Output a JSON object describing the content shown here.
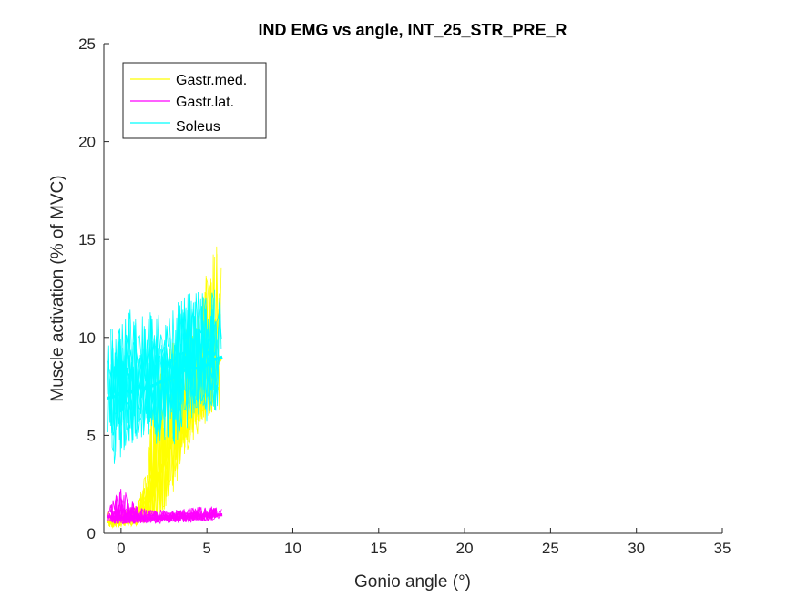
{
  "chart_data": {
    "type": "line",
    "title": "IND EMG vs angle, INT_25_STR_PRE_R",
    "xlabel": "Gonio angle (°)",
    "ylabel": "Muscle activation (% of MVC)",
    "xlim": [
      -1,
      35
    ],
    "ylim": [
      0,
      25
    ],
    "xticks": [
      "0",
      "5",
      "10",
      "15",
      "20",
      "25",
      "30",
      "35"
    ],
    "yticks": [
      "0",
      "5",
      "10",
      "15",
      "20",
      "25"
    ],
    "grid": false,
    "legend_position": "top-left",
    "series": [
      {
        "name": "Gastr.med.",
        "color": "#ffff00",
        "mean": {
          "x": [
            -0.8,
            -0.4,
            0.0,
            0.5,
            1.0,
            1.5,
            2.0,
            2.5,
            3.0,
            3.5,
            4.0,
            4.5,
            5.0,
            5.5,
            5.8
          ],
          "y": [
            0.6,
            0.5,
            0.6,
            0.7,
            0.9,
            1.4,
            2.5,
            3.6,
            4.8,
            5.8,
            6.8,
            7.6,
            8.1,
            8.5,
            8.9
          ]
        },
        "range": {
          "x": [
            -0.8,
            0.0,
            1.0,
            1.5,
            2.0,
            2.5,
            3.0,
            3.5,
            4.0,
            4.5,
            5.0,
            5.5,
            5.9
          ],
          "low": [
            0.3,
            0.3,
            0.4,
            0.6,
            0.8,
            1.2,
            1.6,
            3.5,
            4.5,
            5.0,
            5.5,
            6.0,
            6.5
          ],
          "high": [
            1.1,
            1.0,
            1.6,
            3.5,
            9.0,
            9.5,
            10.0,
            10.0,
            11.0,
            11.5,
            13.5,
            14.8,
            14.8
          ]
        }
      },
      {
        "name": "Gastr.lat.",
        "color": "#ff00ff",
        "mean": {
          "x": [
            -0.8,
            0.0,
            1.0,
            2.0,
            3.0,
            4.0,
            5.0,
            5.9
          ],
          "y": [
            0.85,
            0.8,
            0.8,
            0.75,
            0.8,
            0.85,
            0.9,
            0.95
          ]
        },
        "range": {
          "x": [
            -0.8,
            0.0,
            1.0,
            2.0,
            3.0,
            4.0,
            5.0,
            5.9
          ],
          "low": [
            0.5,
            0.5,
            0.5,
            0.5,
            0.5,
            0.55,
            0.6,
            0.65
          ],
          "high": [
            1.2,
            2.4,
            1.3,
            1.2,
            1.2,
            1.3,
            1.4,
            1.3
          ]
        }
      },
      {
        "name": "Soleus",
        "color": "#00ffff",
        "mean": {
          "x": [
            -0.8,
            -0.3,
            0.2,
            0.6,
            1.0,
            1.5,
            2.0,
            2.5,
            3.0,
            3.5,
            4.0,
            4.5,
            5.0,
            5.5,
            5.9
          ],
          "y": [
            6.9,
            7.0,
            7.3,
            7.2,
            7.5,
            7.4,
            7.6,
            7.8,
            7.9,
            8.2,
            8.5,
            8.4,
            8.6,
            8.9,
            9.0
          ]
        },
        "range": {
          "x": [
            -0.8,
            0.0,
            0.5,
            1.0,
            1.5,
            2.0,
            2.5,
            3.0,
            3.5,
            4.0,
            4.5,
            5.0,
            5.5,
            5.9
          ],
          "low": [
            3.1,
            3.8,
            4.5,
            4.8,
            5.0,
            4.5,
            4.8,
            4.4,
            5.0,
            5.5,
            5.5,
            5.6,
            6.0,
            6.5
          ],
          "high": [
            10.6,
            10.8,
            11.5,
            11.0,
            11.2,
            11.5,
            10.6,
            11.5,
            12.0,
            12.3,
            12.5,
            12.0,
            12.5,
            12.4
          ]
        }
      }
    ]
  }
}
